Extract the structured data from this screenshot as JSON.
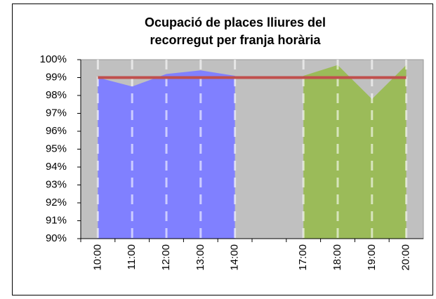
{
  "chart_data": {
    "type": "area",
    "title": [
      "Ocupació de places lliures del",
      "recorregut per franja horària"
    ],
    "categories": [
      "10:00",
      "11:00",
      "12:00",
      "13:00",
      "14:00",
      null,
      "17:00",
      "18:00",
      "19:00",
      "20:00"
    ],
    "series": [
      {
        "type": "area",
        "color": "#8080ff",
        "values": [
          99.0,
          98.5,
          99.2,
          99.4,
          99.1,
          null,
          null,
          null,
          null,
          null
        ]
      },
      {
        "type": "area",
        "color": "#9bbb59",
        "values": [
          null,
          null,
          null,
          null,
          null,
          null,
          99.1,
          99.7,
          97.8,
          99.7
        ]
      },
      {
        "type": "line",
        "color": "#c0504d",
        "values": [
          99,
          99,
          99,
          99,
          99,
          99,
          99,
          99,
          99,
          99
        ]
      }
    ],
    "ylim": [
      90,
      100
    ],
    "yticks": [
      {
        "value": 90,
        "label": "90%"
      },
      {
        "value": 91,
        "label": "91%"
      },
      {
        "value": 92,
        "label": "92%"
      },
      {
        "value": 93,
        "label": "93%"
      },
      {
        "value": 94,
        "label": "94%"
      },
      {
        "value": 95,
        "label": "95%"
      },
      {
        "value": 96,
        "label": "96%"
      },
      {
        "value": 97,
        "label": "97%"
      },
      {
        "value": 98,
        "label": "98%"
      },
      {
        "value": 99,
        "label": "99%"
      },
      {
        "value": 100,
        "label": "100%"
      }
    ],
    "plot_background": "#c0c0c0"
  }
}
